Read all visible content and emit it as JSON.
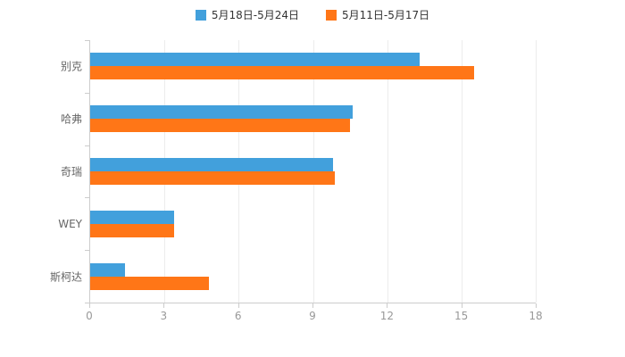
{
  "chart_data": {
    "type": "bar",
    "orientation": "horizontal",
    "title": "",
    "xlabel": "",
    "ylabel": "",
    "categories": [
      "别克",
      "哈弗",
      "奇瑞",
      "WEY",
      "斯柯达"
    ],
    "series": [
      {
        "name": "5月18日-5月24日",
        "color": "#42a0dc",
        "values": [
          13.3,
          10.6,
          9.8,
          3.4,
          1.4
        ]
      },
      {
        "name": "5月11日-5月17日",
        "color": "#ff7617",
        "values": [
          15.5,
          10.5,
          9.9,
          3.4,
          4.8
        ]
      }
    ],
    "xlim": [
      0,
      18
    ],
    "xticks": [
      0,
      3,
      6,
      9,
      12,
      15,
      18
    ],
    "grid": true,
    "legend_position": "top",
    "colors": {
      "axis_line": "#cccccc",
      "grid_line": "#ececec",
      "tick_text": "#999999",
      "category_text": "#666666",
      "legend_text": "#333333",
      "background": "#ffffff"
    }
  }
}
